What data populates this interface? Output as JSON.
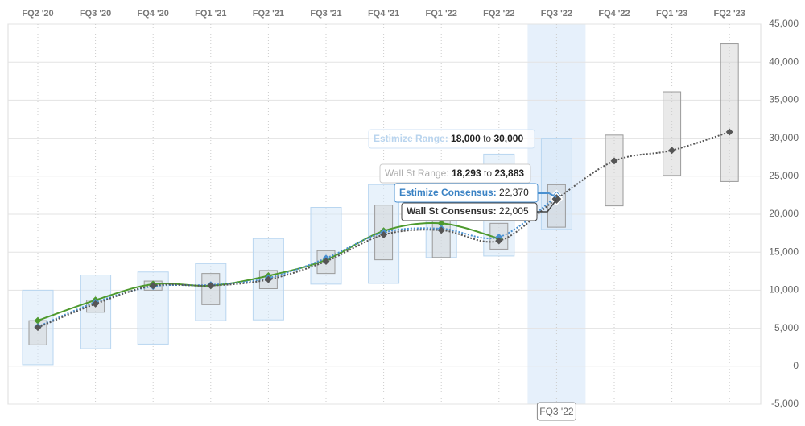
{
  "chart_data": {
    "type": "line",
    "categories": [
      "FQ2 '20",
      "FQ3 '20",
      "FQ4 '20",
      "FQ1 '21",
      "FQ2 '21",
      "FQ3 '21",
      "FQ4 '21",
      "FQ1 '22",
      "FQ2 '22",
      "FQ3 '22",
      "FQ4 '22",
      "FQ1 '23",
      "FQ2 '23"
    ],
    "highlight_index": 9,
    "ylim": [
      -5000,
      45000
    ],
    "yticks": [
      {
        "value": -5000,
        "label": "-5,000"
      },
      0,
      {
        "value": 5000,
        "label": "5,000"
      },
      {
        "value": 10000,
        "label": "10,000"
      },
      {
        "value": 15000,
        "label": "15,000"
      },
      {
        "value": 20000,
        "label": "20,000"
      },
      {
        "value": 25000,
        "label": "25,000"
      },
      {
        "value": 30000,
        "label": "30,000"
      },
      {
        "value": 35000,
        "label": "35,000"
      },
      {
        "value": 40000,
        "label": "40,000"
      },
      {
        "value": 45000,
        "label": "45,000"
      }
    ],
    "grid": true,
    "ranges": [
      {
        "label": "Estimize Range:",
        "color": "#b9d6f0",
        "low": [
          200,
          2300,
          2900,
          6000,
          6100,
          10800,
          10900,
          14300,
          14500,
          18000,
          null,
          null,
          null
        ],
        "high": [
          10000,
          12000,
          12400,
          13500,
          16800,
          20900,
          23900,
          22000,
          27900,
          30000,
          null,
          null,
          null
        ],
        "low_labels": [
          null,
          null,
          null,
          null,
          null,
          null,
          null,
          null,
          null,
          "18,000",
          null,
          null,
          null
        ],
        "high_labels": [
          null,
          null,
          null,
          null,
          null,
          null,
          null,
          null,
          null,
          "30,000",
          null,
          null,
          null
        ]
      },
      {
        "label": "Wall St Range:",
        "color": "#9a9a9a",
        "low": [
          2800,
          7100,
          10000,
          8100,
          10200,
          12200,
          14000,
          14300,
          15400,
          18293,
          21100,
          25100,
          24300
        ],
        "high": [
          6000,
          8700,
          11200,
          12200,
          12600,
          15200,
          21200,
          19400,
          18800,
          23883,
          30400,
          36100,
          42400
        ],
        "low_labels": [
          null,
          null,
          null,
          null,
          null,
          null,
          null,
          null,
          null,
          "18,293",
          null,
          null,
          null
        ],
        "high_labels": [
          null,
          null,
          null,
          null,
          null,
          null,
          null,
          null,
          null,
          "23,883",
          null,
          null,
          null
        ]
      }
    ],
    "range_joiner": "to",
    "series": [
      {
        "color": "#4e9a2e",
        "style": "solid",
        "values": [
          6000,
          8700,
          10800,
          10600,
          11900,
          14000,
          17800,
          18800,
          16800,
          null,
          null,
          null,
          null
        ]
      },
      {
        "label": "Estimize Consensus:",
        "color": "#4a90d0",
        "style": "dotted",
        "values": [
          5200,
          8400,
          10500,
          10700,
          11600,
          14200,
          17600,
          18100,
          17000,
          22370,
          null,
          null,
          null
        ],
        "value_labels": [
          null,
          null,
          null,
          null,
          null,
          null,
          null,
          null,
          null,
          "22,370",
          null,
          null,
          null
        ]
      },
      {
        "label": "Wall St Consensus:",
        "color": "#555555",
        "style": "dotted",
        "values": [
          5100,
          8200,
          10600,
          10600,
          11400,
          13800,
          17300,
          17900,
          16500,
          22005,
          27000,
          28400,
          30800
        ],
        "value_labels": [
          null,
          null,
          null,
          null,
          null,
          null,
          null,
          null,
          null,
          "22,005",
          null,
          null,
          null
        ]
      }
    ]
  }
}
